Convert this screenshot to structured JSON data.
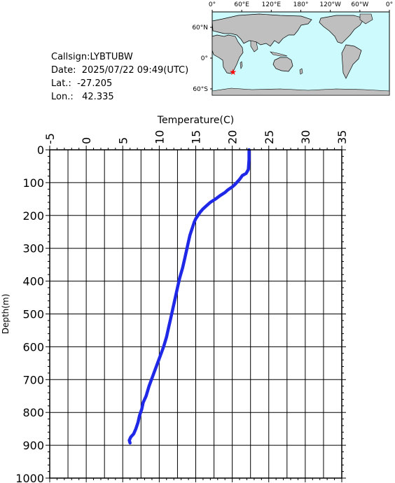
{
  "station": {
    "callsign_label": "Callsign:",
    "callsign": "LYBTUBW",
    "date_label": "Date:",
    "date": "2025/07/22 09:49(UTC)",
    "lat_label": "Lat.:",
    "lat": "-27.205",
    "lon_label": "Lon.:",
    "lon": "42.335"
  },
  "map": {
    "top_ticks": [
      "0°",
      "60°E",
      "120°E",
      "180°",
      "120°W",
      "60°W",
      "0°"
    ],
    "lat_ticks": [
      "60°N",
      "0°",
      "60°S"
    ],
    "ocean_color": "#cdfafd",
    "land_color": "#bfbfbf",
    "marker": {
      "lat": -27.205,
      "lon": 42.335,
      "color": "#ff0000"
    }
  },
  "chart_data": {
    "type": "line",
    "title": "",
    "xlabel": "Temperature(C)",
    "ylabel": "Depth(m)",
    "xlim": [
      -5,
      35
    ],
    "ylim": [
      1000,
      0
    ],
    "x_ticks": [
      "-5",
      "0",
      "5",
      "10",
      "15",
      "20",
      "25",
      "30",
      "35"
    ],
    "y_ticks": [
      "0",
      "100",
      "200",
      "300",
      "400",
      "500",
      "600",
      "700",
      "800",
      "900",
      "1000"
    ],
    "grid": true,
    "line_color": "#1e28e6",
    "series": [
      {
        "points": [
          [
            22.3,
            0
          ],
          [
            22.3,
            30
          ],
          [
            22.2,
            60
          ],
          [
            21.9,
            72
          ],
          [
            21.4,
            78
          ],
          [
            21.0,
            90
          ],
          [
            20.6,
            100
          ],
          [
            20.3,
            107
          ],
          [
            20.0,
            113
          ],
          [
            19.4,
            122
          ],
          [
            19.0,
            130
          ],
          [
            18.3,
            140
          ],
          [
            17.7,
            150
          ],
          [
            17.0,
            160
          ],
          [
            16.5,
            170
          ],
          [
            16.0,
            180
          ],
          [
            15.6,
            190
          ],
          [
            15.3,
            200
          ],
          [
            15.0,
            210
          ],
          [
            14.8,
            220
          ],
          [
            14.5,
            240
          ],
          [
            14.2,
            260
          ],
          [
            14.0,
            280
          ],
          [
            13.8,
            300
          ],
          [
            13.5,
            330
          ],
          [
            13.2,
            360
          ],
          [
            12.8,
            390
          ],
          [
            12.5,
            420
          ],
          [
            12.2,
            450
          ],
          [
            11.9,
            480
          ],
          [
            11.6,
            510
          ],
          [
            11.3,
            540
          ],
          [
            11.0,
            570
          ],
          [
            10.6,
            600
          ],
          [
            10.1,
            630
          ],
          [
            9.6,
            660
          ],
          [
            9.1,
            690
          ],
          [
            8.6,
            720
          ],
          [
            8.2,
            750
          ],
          [
            7.8,
            770
          ],
          [
            7.6,
            790
          ],
          [
            7.3,
            810
          ],
          [
            7.1,
            830
          ],
          [
            6.8,
            850
          ],
          [
            6.5,
            865
          ],
          [
            6.1,
            875
          ],
          [
            5.9,
            885
          ],
          [
            6.0,
            893
          ]
        ]
      }
    ]
  }
}
